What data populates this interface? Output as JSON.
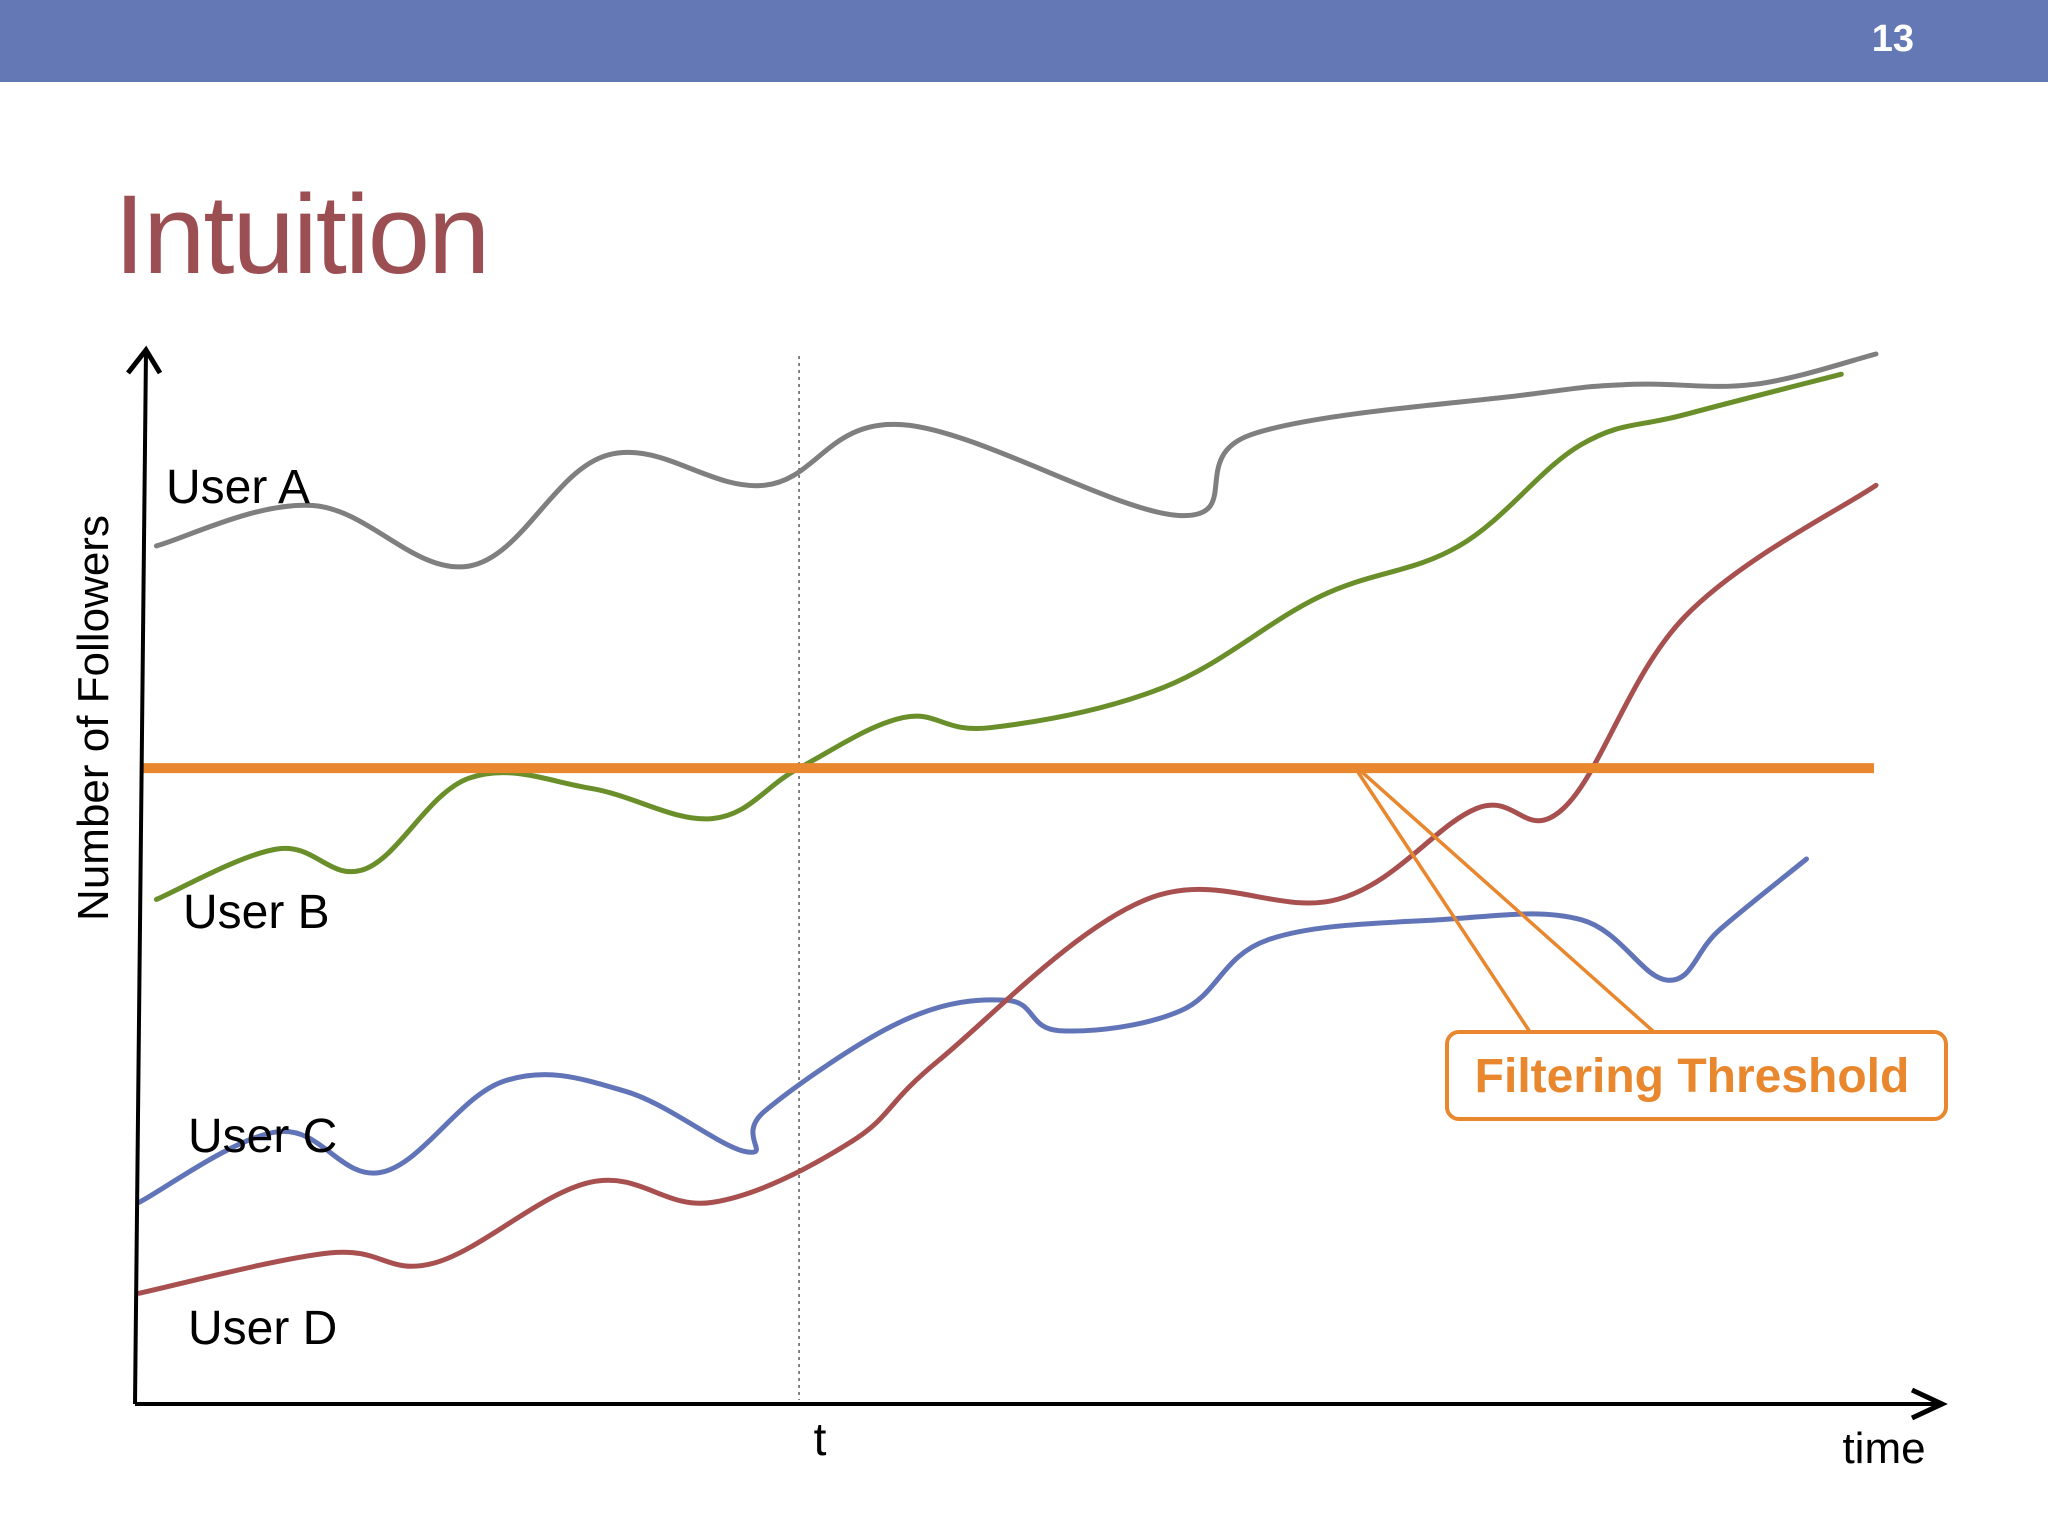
{
  "slide": {
    "page_number": "13",
    "title": "Intuition",
    "bar_color": "#6378b4",
    "title_color": "#9b4f52"
  },
  "chart_data": {
    "type": "line",
    "title": "",
    "xlabel": "time",
    "ylabel": "Number of Followers",
    "x_marker": {
      "label": "t",
      "x": 0.38,
      "style": "dotted"
    },
    "xlim": [
      0,
      1
    ],
    "ylim": [
      0,
      1
    ],
    "grid": false,
    "legend": "none",
    "threshold": {
      "label": "Filtering Threshold",
      "y": 0.59,
      "color": "#e8872d"
    },
    "series": [
      {
        "name": "User A",
        "color": "#7f7f7f",
        "x": [
          0.01,
          0.1,
          0.19,
          0.27,
          0.36,
          0.44,
          0.6,
          0.64,
          0.8,
          0.86,
          0.93,
          1.0
        ],
        "y": [
          0.81,
          0.85,
          0.79,
          0.9,
          0.87,
          0.93,
          0.84,
          0.92,
          0.96,
          0.97,
          0.97,
          1.0
        ]
      },
      {
        "name": "User B",
        "color": "#6a8f2a",
        "x": [
          0.01,
          0.08,
          0.13,
          0.19,
          0.26,
          0.33,
          0.38,
          0.44,
          0.49,
          0.59,
          0.68,
          0.76,
          0.83,
          0.89,
          0.98
        ],
        "y": [
          0.46,
          0.51,
          0.49,
          0.58,
          0.57,
          0.54,
          0.59,
          0.64,
          0.63,
          0.67,
          0.76,
          0.81,
          0.91,
          0.94,
          0.98
        ]
      },
      {
        "name": "User C",
        "color": "#6274b8",
        "x": [
          0.0,
          0.08,
          0.14,
          0.21,
          0.28,
          0.35,
          0.36,
          0.44,
          0.5,
          0.53,
          0.6,
          0.65,
          0.75,
          0.83,
          0.88,
          0.91,
          0.96
        ],
        "y": [
          0.16,
          0.23,
          0.19,
          0.28,
          0.27,
          0.21,
          0.25,
          0.34,
          0.36,
          0.33,
          0.35,
          0.42,
          0.44,
          0.44,
          0.38,
          0.43,
          0.5
        ]
      },
      {
        "name": "User D",
        "color": "#a85050",
        "x": [
          0.0,
          0.11,
          0.17,
          0.26,
          0.33,
          0.41,
          0.46,
          0.58,
          0.69,
          0.77,
          0.82,
          0.89,
          1.0
        ],
        "y": [
          0.07,
          0.11,
          0.1,
          0.18,
          0.16,
          0.22,
          0.3,
          0.46,
          0.46,
          0.55,
          0.55,
          0.74,
          0.87
        ]
      }
    ]
  }
}
